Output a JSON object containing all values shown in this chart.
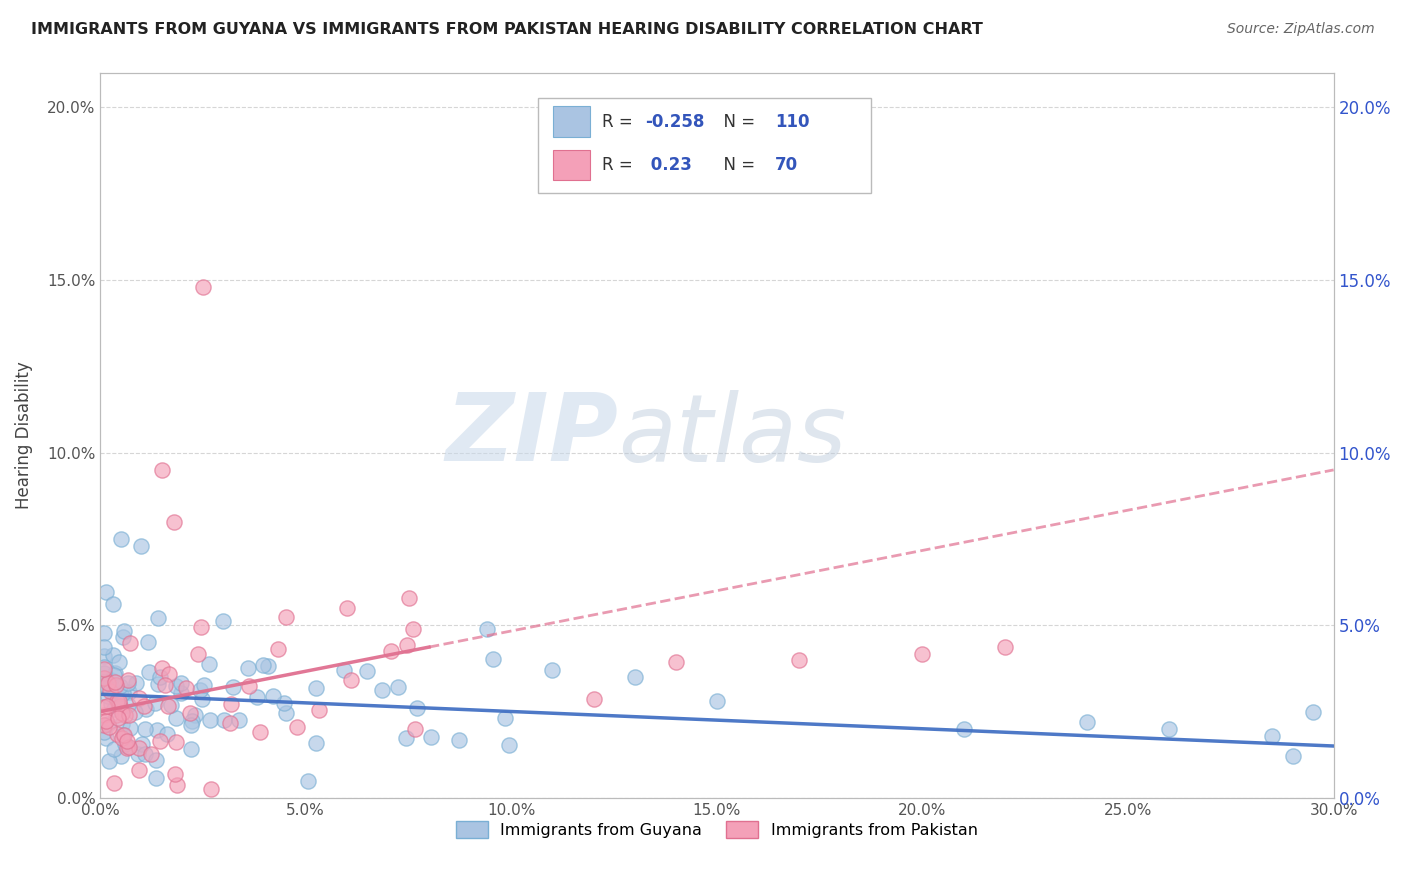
{
  "title": "IMMIGRANTS FROM GUYANA VS IMMIGRANTS FROM PAKISTAN HEARING DISABILITY CORRELATION CHART",
  "source": "Source: ZipAtlas.com",
  "ylabel": "Hearing Disability",
  "xlim": [
    0.0,
    0.3
  ],
  "ylim": [
    0.0,
    0.21
  ],
  "xticks": [
    0.0,
    0.05,
    0.1,
    0.15,
    0.2,
    0.25,
    0.3
  ],
  "yticks": [
    0.0,
    0.05,
    0.1,
    0.15,
    0.2
  ],
  "color_guyana": "#aac4e2",
  "color_guyana_edge": "#7aafd4",
  "color_pakistan": "#f4a0b8",
  "color_pakistan_edge": "#e07090",
  "color_guyana_line": "#4472c4",
  "color_pakistan_line": "#e07090",
  "R_guyana": -0.258,
  "N_guyana": 110,
  "R_pakistan": 0.23,
  "N_pakistan": 70,
  "watermark_zip": "ZIP",
  "watermark_atlas": "atlas",
  "legend_R_color": "#3355bb",
  "legend_N_color": "#3355bb"
}
